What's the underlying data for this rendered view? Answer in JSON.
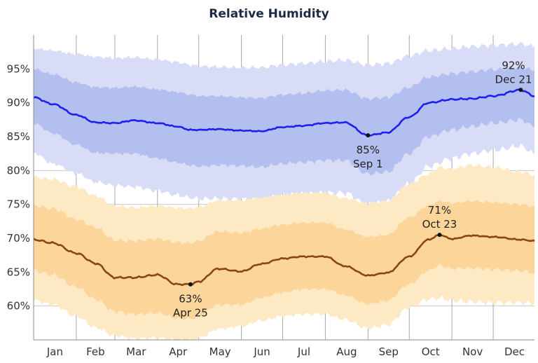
{
  "chart_data": {
    "type": "area",
    "title": "Relative Humidity",
    "xlabel": "",
    "ylabel": "",
    "x_unit": "day_of_year",
    "x_range": [
      1,
      365
    ],
    "ylim": [
      55,
      100
    ],
    "y_ticks": [
      60,
      65,
      70,
      75,
      80,
      85,
      90,
      95
    ],
    "y_tick_labels": [
      "60%",
      "65%",
      "70%",
      "75%",
      "80%",
      "85%",
      "90%",
      "95%"
    ],
    "x_categories": [
      "Jan",
      "Feb",
      "Mar",
      "Apr",
      "May",
      "Jun",
      "Jul",
      "Aug",
      "Sep",
      "Oct",
      "Nov",
      "Dec"
    ],
    "grid": true,
    "colors": {
      "high_line": "#1f1ff0",
      "high_band_inner": "#b3bfee",
      "high_band_outer": "#d8dcf6",
      "low_line": "#8b4513",
      "low_band_inner": "#fbd59a",
      "low_band_outer": "#fde9c4"
    },
    "series": [
      {
        "role": "daily-high",
        "x": [
          1,
          15,
          32,
          46,
          60,
          74,
          91,
          105,
          115,
          121,
          135,
          152,
          166,
          182,
          196,
          213,
          227,
          244,
          258,
          274,
          288,
          305,
          319,
          335,
          355,
          365
        ],
        "median": [
          90.8,
          89.8,
          88.2,
          87.1,
          87.0,
          87.4,
          87.0,
          86.5,
          86.0,
          86.0,
          86.1,
          85.9,
          85.8,
          86.4,
          86.6,
          87.0,
          87.1,
          85.2,
          85.6,
          87.9,
          90.0,
          90.5,
          90.6,
          91.0,
          91.9,
          91.0
        ],
        "p25": [
          87.0,
          85.5,
          83.8,
          82.6,
          82.5,
          82.5,
          81.8,
          81.2,
          80.8,
          80.6,
          80.8,
          80.7,
          80.5,
          81.0,
          81.2,
          81.5,
          81.5,
          79.5,
          79.8,
          82.5,
          85.0,
          86.0,
          86.5,
          87.0,
          87.5,
          86.5
        ],
        "p75": [
          95.0,
          94.2,
          93.0,
          92.3,
          92.2,
          92.4,
          92.0,
          91.6,
          91.2,
          91.0,
          91.0,
          90.8,
          90.7,
          91.2,
          91.4,
          91.8,
          91.9,
          90.6,
          90.8,
          92.3,
          93.8,
          94.3,
          94.6,
          94.9,
          95.2,
          94.8
        ],
        "p10": [
          82.6,
          81.0,
          79.6,
          78.3,
          77.8,
          77.6,
          77.0,
          76.4,
          76.0,
          75.8,
          75.9,
          75.8,
          75.7,
          76.3,
          76.5,
          76.7,
          76.7,
          75.0,
          75.4,
          78.0,
          80.6,
          81.8,
          82.5,
          83.0,
          83.6,
          82.5
        ],
        "p90": [
          98.0,
          97.7,
          97.2,
          96.8,
          96.6,
          96.7,
          96.4,
          96.0,
          95.6,
          95.4,
          95.3,
          95.2,
          95.2,
          95.6,
          95.8,
          96.1,
          96.3,
          95.6,
          95.8,
          96.9,
          97.7,
          98.0,
          98.3,
          98.5,
          98.7,
          98.3
        ]
      },
      {
        "role": "daily-low",
        "x": [
          1,
          15,
          32,
          46,
          60,
          74,
          91,
          105,
          115,
          121,
          135,
          152,
          166,
          182,
          196,
          213,
          227,
          244,
          258,
          274,
          288,
          296,
          305,
          319,
          335,
          355,
          365
        ],
        "median": [
          69.8,
          69.3,
          67.8,
          66.3,
          64.2,
          64.2,
          64.6,
          63.2,
          63.2,
          63.6,
          65.5,
          65.1,
          66.2,
          67.0,
          67.3,
          67.3,
          65.9,
          64.5,
          64.9,
          67.3,
          69.8,
          70.5,
          69.9,
          70.4,
          70.2,
          69.8,
          69.6
        ],
        "p25": [
          65.2,
          64.6,
          62.8,
          61.0,
          59.2,
          58.8,
          59.0,
          58.2,
          58.1,
          58.5,
          60.2,
          60.2,
          61.2,
          62.0,
          62.5,
          62.5,
          61.6,
          60.3,
          60.8,
          63.2,
          65.2,
          66.0,
          65.5,
          65.6,
          65.4,
          65.2,
          64.9
        ],
        "p75": [
          74.8,
          74.4,
          72.8,
          71.6,
          69.7,
          69.6,
          69.9,
          69.4,
          69.3,
          69.6,
          71.0,
          70.8,
          71.4,
          72.0,
          72.3,
          72.3,
          71.3,
          70.2,
          70.5,
          73.1,
          74.8,
          75.5,
          75.2,
          75.5,
          75.3,
          75.0,
          74.7
        ],
        "p10": [
          60.8,
          60.2,
          58.5,
          56.8,
          55.6,
          55.2,
          55.3,
          55.0,
          55.0,
          55.3,
          56.6,
          57.0,
          57.8,
          58.5,
          58.8,
          58.8,
          58.0,
          56.7,
          57.2,
          59.8,
          61.0,
          61.2,
          60.8,
          60.6,
          60.5,
          60.5,
          60.4
        ],
        "p90": [
          79.0,
          78.7,
          77.6,
          76.3,
          74.8,
          74.5,
          74.8,
          74.5,
          74.4,
          74.6,
          75.6,
          75.6,
          76.0,
          76.4,
          76.7,
          76.7,
          75.9,
          75.2,
          75.5,
          78.0,
          79.5,
          80.5,
          80.2,
          80.8,
          80.5,
          79.8,
          79.4
        ]
      }
    ],
    "annotations": [
      {
        "value_label": "92%",
        "date_label": "Dec 21",
        "x": 355,
        "y": 91.9,
        "label_pos": "above"
      },
      {
        "value_label": "85%",
        "date_label": "Sep 1",
        "x": 244,
        "y": 85.2,
        "label_pos": "below"
      },
      {
        "value_label": "71%",
        "date_label": "Oct 23",
        "x": 296,
        "y": 70.5,
        "label_pos": "above"
      },
      {
        "value_label": "63%",
        "date_label": "Apr 25",
        "x": 115,
        "y": 63.2,
        "label_pos": "below"
      }
    ]
  }
}
